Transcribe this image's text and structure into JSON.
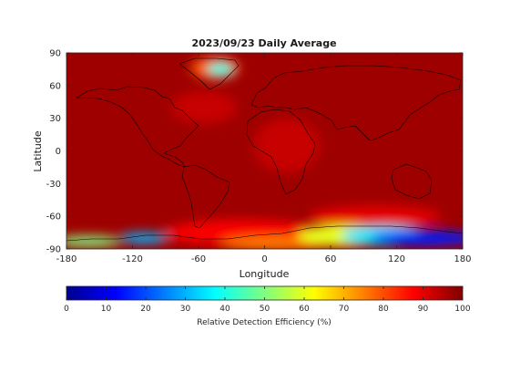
{
  "chart_data": {
    "type": "heatmap",
    "title": "2023/09/23 Daily Average",
    "xlabel": "Longitude",
    "ylabel": "Latitude",
    "xlim": [
      -180,
      180
    ],
    "ylim": [
      -90,
      90
    ],
    "x_ticks": [
      "-180",
      "-120",
      "-60",
      "0",
      "60",
      "120",
      "180"
    ],
    "y_ticks": [
      "90",
      "60",
      "30",
      "0",
      "-30",
      "-60",
      "-90"
    ],
    "colormap": "jet",
    "colorbar": {
      "label": "Relative Detection Efficiency (%)",
      "range": [
        0,
        100
      ],
      "ticks": [
        "0",
        "10",
        "20",
        "30",
        "40",
        "50",
        "60",
        "70",
        "80",
        "90",
        "100"
      ]
    },
    "background_value": 97,
    "regions": [
      {
        "lon": 145,
        "lat": -80,
        "rx": 48,
        "ry": 7,
        "value": 15
      },
      {
        "lon": 110,
        "lat": -78,
        "rx": 40,
        "ry": 9,
        "value": 35
      },
      {
        "lon": 70,
        "lat": -78,
        "rx": 40,
        "ry": 10,
        "value": 60
      },
      {
        "lon": 10,
        "lat": -85,
        "rx": 50,
        "ry": 6,
        "value": 75
      },
      {
        "lon": -110,
        "lat": -80,
        "rx": 22,
        "ry": 5,
        "value": 30
      },
      {
        "lon": -160,
        "lat": -83,
        "rx": 30,
        "ry": 5,
        "value": 50
      },
      {
        "lon": -20,
        "lat": -75,
        "rx": 70,
        "ry": 12,
        "value": 88
      },
      {
        "lon": -40,
        "lat": 75,
        "rx": 12,
        "ry": 6,
        "value": 40
      },
      {
        "lon": -45,
        "lat": 76,
        "rx": 22,
        "ry": 10,
        "value": 78
      },
      {
        "lon": 20,
        "lat": 5,
        "rx": 30,
        "ry": 25,
        "value": 93
      },
      {
        "lon": -55,
        "lat": 40,
        "rx": 30,
        "ry": 15,
        "value": 93
      },
      {
        "lon": 100,
        "lat": -60,
        "rx": 60,
        "ry": 10,
        "value": 90
      }
    ]
  }
}
